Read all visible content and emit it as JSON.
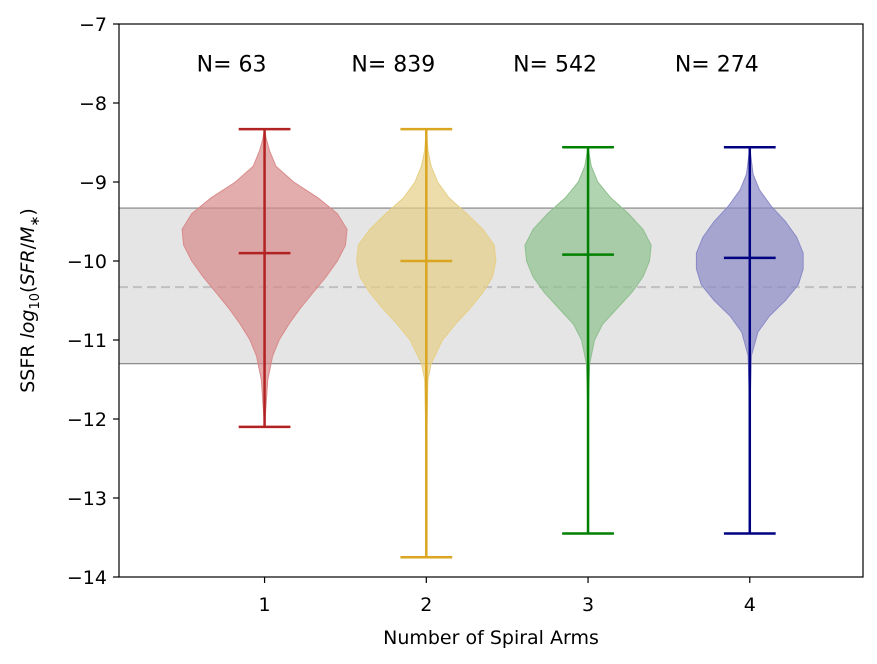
{
  "chart_data": {
    "type": "violin",
    "xlabel": "Number of Spiral Arms",
    "ylabel": {
      "prefix": "SSFR ",
      "log": "log",
      "sub": "10",
      "open": "(",
      "sfr": "SFR",
      "slash": "/",
      "m": "M",
      "star": "∗",
      "close": ")"
    },
    "xlim": [
      0.1,
      4.7
    ],
    "ylim": [
      -14,
      -7
    ],
    "xticks": [
      {
        "value": 1,
        "label": "1"
      },
      {
        "value": 2,
        "label": "2"
      },
      {
        "value": 3,
        "label": "3"
      },
      {
        "value": 4,
        "label": "4"
      }
    ],
    "yticks": [
      {
        "value": -7,
        "label": "−7"
      },
      {
        "value": -8,
        "label": "−8"
      },
      {
        "value": -9,
        "label": "−9"
      },
      {
        "value": -10,
        "label": "−10"
      },
      {
        "value": -11,
        "label": "−11"
      },
      {
        "value": -12,
        "label": "−12"
      },
      {
        "value": -13,
        "label": "−13"
      },
      {
        "value": -14,
        "label": "−14"
      }
    ],
    "reference_band": {
      "low": -11.3,
      "high": -9.33,
      "color": "#e5e5e5",
      "edge_color": "#808080"
    },
    "reference_line": {
      "value": -10.33,
      "color": "#c0c0c0",
      "style": "dashed"
    },
    "count_label_y": -7.5,
    "series": [
      {
        "x": 1,
        "count_label": "N=  63",
        "color": "#b22222",
        "fill": "#d98a8a",
        "min": -12.1,
        "max": -8.33,
        "median": -9.9,
        "profile": [
          [
            -12.1,
            0.0
          ],
          [
            -11.8,
            0.01
          ],
          [
            -11.5,
            0.02
          ],
          [
            -11.2,
            0.05
          ],
          [
            -11.0,
            0.09
          ],
          [
            -10.8,
            0.15
          ],
          [
            -10.6,
            0.22
          ],
          [
            -10.4,
            0.3
          ],
          [
            -10.2,
            0.38
          ],
          [
            -10.0,
            0.45
          ],
          [
            -9.8,
            0.5
          ],
          [
            -9.6,
            0.51
          ],
          [
            -9.4,
            0.45
          ],
          [
            -9.2,
            0.33
          ],
          [
            -9.0,
            0.18
          ],
          [
            -8.8,
            0.07
          ],
          [
            -8.6,
            0.03
          ],
          [
            -8.45,
            0.01
          ],
          [
            -8.33,
            0.0
          ]
        ]
      },
      {
        "x": 2,
        "count_label": "N= 839",
        "color": "#daa520",
        "fill": "#e6cf86",
        "min": -13.75,
        "max": -8.33,
        "median": -10.0,
        "profile": [
          [
            -13.75,
            0.0
          ],
          [
            -12.5,
            0.0
          ],
          [
            -11.5,
            0.01
          ],
          [
            -11.3,
            0.03
          ],
          [
            -11.0,
            0.1
          ],
          [
            -10.8,
            0.18
          ],
          [
            -10.6,
            0.27
          ],
          [
            -10.4,
            0.35
          ],
          [
            -10.2,
            0.41
          ],
          [
            -10.0,
            0.43
          ],
          [
            -9.8,
            0.42
          ],
          [
            -9.6,
            0.35
          ],
          [
            -9.4,
            0.25
          ],
          [
            -9.2,
            0.14
          ],
          [
            -9.0,
            0.07
          ],
          [
            -8.8,
            0.03
          ],
          [
            -8.6,
            0.01
          ],
          [
            -8.33,
            0.0
          ]
        ]
      },
      {
        "x": 3,
        "count_label": "N= 542",
        "color": "#008000",
        "fill": "#8fc08f",
        "min": -13.45,
        "max": -8.56,
        "median": -9.92,
        "profile": [
          [
            -13.45,
            0.0
          ],
          [
            -12.0,
            0.0
          ],
          [
            -11.3,
            0.01
          ],
          [
            -11.0,
            0.04
          ],
          [
            -10.8,
            0.09
          ],
          [
            -10.6,
            0.18
          ],
          [
            -10.4,
            0.27
          ],
          [
            -10.2,
            0.34
          ],
          [
            -10.0,
            0.38
          ],
          [
            -9.8,
            0.39
          ],
          [
            -9.6,
            0.34
          ],
          [
            -9.4,
            0.25
          ],
          [
            -9.2,
            0.14
          ],
          [
            -9.0,
            0.06
          ],
          [
            -8.8,
            0.02
          ],
          [
            -8.56,
            0.0
          ]
        ]
      },
      {
        "x": 4,
        "count_label": "N= 274",
        "color": "#000080",
        "fill": "#8a8ac8",
        "min": -13.45,
        "max": -8.56,
        "median": -9.96,
        "profile": [
          [
            -13.45,
            0.0
          ],
          [
            -12.0,
            0.0
          ],
          [
            -11.2,
            0.01
          ],
          [
            -10.9,
            0.05
          ],
          [
            -10.7,
            0.12
          ],
          [
            -10.5,
            0.22
          ],
          [
            -10.3,
            0.3
          ],
          [
            -10.1,
            0.33
          ],
          [
            -9.9,
            0.33
          ],
          [
            -9.7,
            0.29
          ],
          [
            -9.5,
            0.22
          ],
          [
            -9.3,
            0.13
          ],
          [
            -9.1,
            0.06
          ],
          [
            -8.9,
            0.02
          ],
          [
            -8.56,
            0.0
          ]
        ]
      }
    ]
  }
}
